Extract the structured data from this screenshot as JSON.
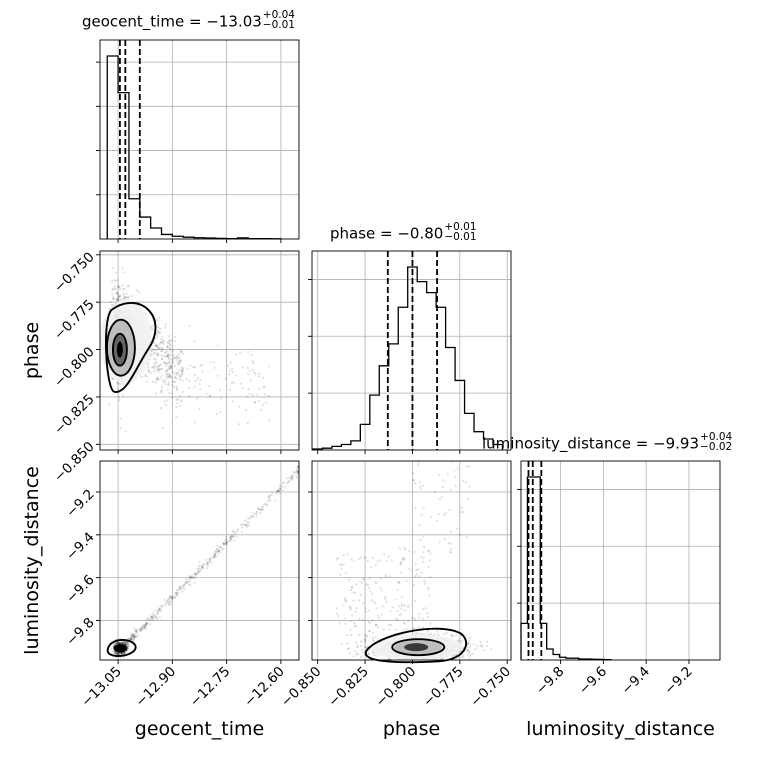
{
  "chart_data": {
    "type": "corner",
    "parameters": [
      "geocent_time",
      "phase",
      "luminosity_distance"
    ],
    "grid": true,
    "titles": [
      {
        "param": "geocent_time",
        "label": "geocent_time = −13.03",
        "plus": "+0.04",
        "minus": "−0.01"
      },
      {
        "param": "phase",
        "label": "phase = −0.80",
        "plus": "+0.01",
        "minus": "−0.01"
      },
      {
        "param": "luminosity_distance",
        "label": "luminosity_distance = −9.93",
        "plus": "+0.04",
        "minus": "−0.02"
      }
    ],
    "ranges": {
      "geocent_time": [
        -13.1,
        -12.55
      ],
      "phase": [
        -0.853,
        -0.748
      ],
      "luminosity_distance": [
        -9.985,
        -9.055
      ]
    },
    "ticks": {
      "geocent_time": [
        -13.05,
        -12.9,
        -12.75,
        -12.6
      ],
      "phase": [
        -0.85,
        -0.825,
        -0.8,
        -0.775,
        -0.75
      ],
      "luminosity_distance": [
        -9.8,
        -9.6,
        -9.4,
        -9.2
      ]
    },
    "tick_labels": {
      "geocent_time": [
        "−13.05",
        "−12.90",
        "−12.75",
        "−12.60"
      ],
      "phase_x": [
        "−0.850",
        "−0.825",
        "−0.800",
        "−0.775",
        "−0.750"
      ],
      "phase_y": [
        "−0.750",
        "−0.775",
        "−0.800",
        "−0.825",
        "−0.850"
      ],
      "luminosity_distance_x": [
        "−9.8",
        "−9.6",
        "−9.4",
        "−9.2"
      ],
      "luminosity_distance_y": [
        "−9.2",
        "−9.4",
        "−9.6",
        "−9.8"
      ]
    },
    "axis_labels": {
      "geocent_time": "geocent_time",
      "phase": "phase",
      "luminosity_distance": "luminosity_distance"
    },
    "quantiles": {
      "geocent_time": [
        -13.045,
        -13.03,
        -12.99
      ],
      "phase": [
        -0.813,
        -0.8,
        -0.787
      ],
      "luminosity_distance": [
        -9.95,
        -9.93,
        -9.89
      ]
    },
    "histograms": {
      "geocent_time": {
        "bins": [
          -13.08,
          -13.05,
          -13.02,
          -12.99,
          -12.96,
          -12.93,
          -12.9,
          -12.87,
          -12.84,
          -12.81,
          -12.78,
          -12.75,
          -12.72,
          -12.69,
          -12.66,
          -12.63,
          -12.6
        ],
        "counts": [
          100,
          80,
          22,
          12,
          6,
          2.5,
          1.5,
          1,
          0.7,
          0.5,
          0.3,
          0.2,
          0.6,
          0.2,
          0.2,
          0.1
        ]
      },
      "phase": {
        "bins": [
          -0.8525,
          -0.8475,
          -0.8425,
          -0.8375,
          -0.8325,
          -0.8275,
          -0.8225,
          -0.8175,
          -0.8125,
          -0.8075,
          -0.8025,
          -0.7975,
          -0.7925,
          -0.7875,
          -0.7825,
          -0.7775,
          -0.7725,
          -0.7675,
          -0.7625,
          -0.7575,
          -0.7525
        ],
        "counts": [
          0.5,
          1,
          2,
          3,
          5,
          14,
          30,
          46,
          58,
          78,
          100,
          92,
          86,
          78,
          56,
          38,
          20,
          10,
          6,
          3
        ]
      },
      "luminosity_distance": {
        "bins": [
          -9.985,
          -9.955,
          -9.925,
          -9.895,
          -9.865,
          -9.835,
          -9.805,
          -9.775,
          -9.745,
          -9.715,
          -9.685,
          -9.655,
          -9.625,
          -9.595,
          -9.565
        ],
        "counts": [
          20,
          100,
          100,
          20,
          6,
          3,
          1.5,
          1,
          1,
          0.5,
          0.5,
          0.4,
          0.3,
          0.2
        ]
      }
    }
  }
}
